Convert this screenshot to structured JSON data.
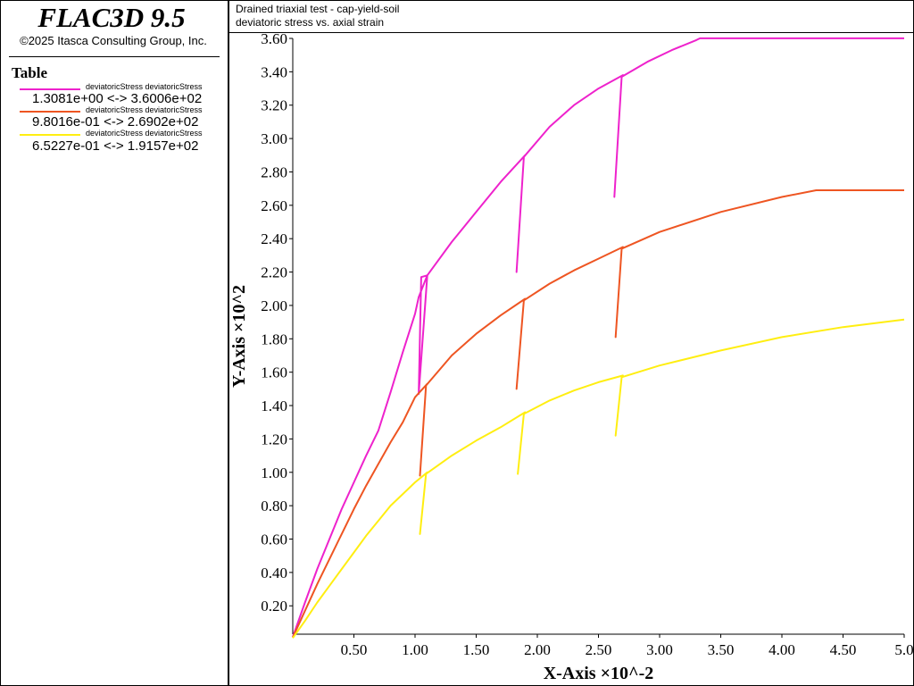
{
  "app": {
    "name": "FLAC3D 9.5",
    "copyright": "©2025 Itasca Consulting Group, Inc."
  },
  "legend": {
    "heading": "Table",
    "entries": [
      {
        "name": "deviatoricStress deviatoricStress",
        "range": "1.3081e+00 <->  3.6006e+02",
        "color": "#ee22cc"
      },
      {
        "name": "deviatoricStress deviatoricStress",
        "range": "9.8016e-01 <->  2.6902e+02",
        "color": "#ee5522"
      },
      {
        "name": "deviatoricStress deviatoricStress",
        "range": "6.5227e-01 <->  1.9157e+02",
        "color": "#ffee11"
      }
    ]
  },
  "plot_header": {
    "title": "Drained triaxial test - cap-yield-soil",
    "subtitle": "deviatoric stress vs. axial strain"
  },
  "chart_data": {
    "type": "line",
    "title": "Drained triaxial test - cap-yield-soil",
    "subtitle": "deviatoric stress vs. axial strain",
    "xlabel": "X-Axis ×10^-2",
    "ylabel": "Y-Axis ×10^2",
    "xlim": [
      0,
      5.0
    ],
    "ylim": [
      0.03,
      3.6
    ],
    "x_ticks": [
      0.5,
      1.0,
      1.5,
      2.0,
      2.5,
      3.0,
      3.5,
      4.0,
      4.5,
      5.0
    ],
    "x_tick_labels": [
      "0.50",
      "1.00",
      "1.50",
      "2.00",
      "2.50",
      "3.00",
      "3.50",
      "4.00",
      "4.50",
      "5.0"
    ],
    "y_ticks": [
      0.2,
      0.4,
      0.6,
      0.8,
      1.0,
      1.2,
      1.4,
      1.6,
      1.8,
      2.0,
      2.2,
      2.4,
      2.6,
      2.8,
      3.0,
      3.2,
      3.4,
      3.6
    ],
    "y_tick_labels": [
      "0.20",
      "0.40",
      "0.60",
      "0.80",
      "1.00",
      "1.20",
      "1.40",
      "1.60",
      "1.80",
      "2.00",
      "2.20",
      "2.40",
      "2.60",
      "2.80",
      "3.00",
      "3.20",
      "3.40",
      "3.60"
    ],
    "grid": false,
    "legend_position": "left-panel",
    "series": [
      {
        "color": "#ee22cc",
        "points": [
          [
            0,
            0.013
          ],
          [
            0.1,
            0.22
          ],
          [
            0.2,
            0.42
          ],
          [
            0.3,
            0.6
          ],
          [
            0.4,
            0.78
          ],
          [
            0.5,
            0.94
          ],
          [
            0.6,
            1.1
          ],
          [
            0.7,
            1.25
          ],
          [
            0.8,
            1.48
          ],
          [
            0.9,
            1.72
          ],
          [
            1.0,
            1.95
          ],
          [
            1.03,
            2.05
          ],
          [
            1.1,
            2.18
          ],
          [
            1.05,
            2.17
          ],
          [
            1.03,
            1.47
          ],
          [
            1.1,
            2.18
          ],
          [
            1.3,
            2.38
          ],
          [
            1.5,
            2.56
          ],
          [
            1.7,
            2.74
          ],
          [
            1.9,
            2.9
          ],
          [
            1.89,
            2.89
          ],
          [
            1.83,
            2.2
          ],
          [
            1.89,
            2.89
          ],
          [
            2.1,
            3.07
          ],
          [
            2.3,
            3.2
          ],
          [
            2.5,
            3.3
          ],
          [
            2.7,
            3.38
          ],
          [
            2.69,
            3.37
          ],
          [
            2.63,
            2.65
          ],
          [
            2.69,
            3.37
          ],
          [
            2.9,
            3.46
          ],
          [
            3.1,
            3.53
          ],
          [
            3.3,
            3.59
          ],
          [
            3.33,
            3.6006
          ],
          [
            5.0,
            3.6006
          ]
        ]
      },
      {
        "color": "#ee5522",
        "points": [
          [
            0,
            0.01
          ],
          [
            0.1,
            0.17
          ],
          [
            0.2,
            0.33
          ],
          [
            0.3,
            0.48
          ],
          [
            0.4,
            0.63
          ],
          [
            0.5,
            0.78
          ],
          [
            0.6,
            0.92
          ],
          [
            0.7,
            1.05
          ],
          [
            0.8,
            1.18
          ],
          [
            0.9,
            1.3
          ],
          [
            1.0,
            1.45
          ],
          [
            1.1,
            1.53
          ],
          [
            1.09,
            1.52
          ],
          [
            1.04,
            0.98
          ],
          [
            1.09,
            1.52
          ],
          [
            1.3,
            1.7
          ],
          [
            1.5,
            1.83
          ],
          [
            1.7,
            1.94
          ],
          [
            1.9,
            2.04
          ],
          [
            1.89,
            2.03
          ],
          [
            1.83,
            1.5
          ],
          [
            1.89,
            2.03
          ],
          [
            2.1,
            2.13
          ],
          [
            2.3,
            2.21
          ],
          [
            2.5,
            2.28
          ],
          [
            2.7,
            2.35
          ],
          [
            2.69,
            2.34
          ],
          [
            2.64,
            1.81
          ],
          [
            2.69,
            2.34
          ],
          [
            3.0,
            2.44
          ],
          [
            3.5,
            2.56
          ],
          [
            4.0,
            2.65
          ],
          [
            4.28,
            2.6902
          ],
          [
            5.0,
            2.6902
          ]
        ]
      },
      {
        "color": "#ffee11",
        "points": [
          [
            0,
            0.007
          ],
          [
            0.1,
            0.11
          ],
          [
            0.2,
            0.22
          ],
          [
            0.3,
            0.32
          ],
          [
            0.4,
            0.42
          ],
          [
            0.5,
            0.52
          ],
          [
            0.6,
            0.62
          ],
          [
            0.7,
            0.71
          ],
          [
            0.8,
            0.8
          ],
          [
            0.9,
            0.87
          ],
          [
            1.0,
            0.94
          ],
          [
            1.1,
            1.0
          ],
          [
            1.09,
            0.99
          ],
          [
            1.04,
            0.63
          ],
          [
            1.09,
            0.99
          ],
          [
            1.3,
            1.1
          ],
          [
            1.5,
            1.19
          ],
          [
            1.7,
            1.27
          ],
          [
            1.9,
            1.36
          ],
          [
            1.89,
            1.35
          ],
          [
            1.84,
            0.99
          ],
          [
            1.89,
            1.35
          ],
          [
            2.1,
            1.43
          ],
          [
            2.3,
            1.49
          ],
          [
            2.5,
            1.54
          ],
          [
            2.7,
            1.58
          ],
          [
            2.69,
            1.57
          ],
          [
            2.64,
            1.22
          ],
          [
            2.69,
            1.57
          ],
          [
            3.0,
            1.64
          ],
          [
            3.5,
            1.73
          ],
          [
            4.0,
            1.81
          ],
          [
            4.5,
            1.87
          ],
          [
            5.0,
            1.9157
          ]
        ]
      }
    ]
  }
}
